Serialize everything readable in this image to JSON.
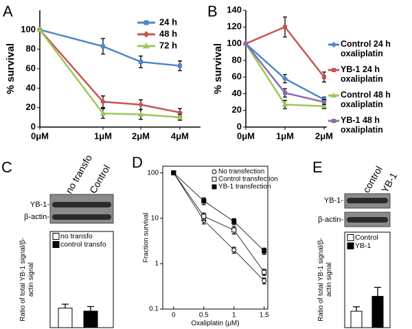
{
  "chart_data": [
    {
      "type": "line",
      "panel": "A",
      "ylabel": "% survival",
      "categories": [
        "0μM",
        "1μM",
        "2μM",
        "4μM"
      ],
      "series": [
        {
          "name": "24 h",
          "color": "#4f86c6",
          "marker": "square",
          "values": [
            100,
            83,
            67,
            63
          ],
          "errors": [
            null,
            8,
            6,
            5
          ]
        },
        {
          "name": "48 h",
          "color": "#c9534f",
          "marker": "diamond",
          "values": [
            100,
            26,
            23,
            15
          ],
          "errors": [
            null,
            6,
            5,
            4
          ]
        },
        {
          "name": "72 h",
          "color": "#9bc65a",
          "marker": "triangle",
          "values": [
            100,
            14,
            13,
            10
          ],
          "errors": [
            null,
            5,
            5,
            3
          ]
        }
      ],
      "ylim": [
        0,
        120
      ],
      "yticks": [
        0,
        20,
        40,
        60,
        80,
        100
      ]
    },
    {
      "type": "line",
      "panel": "B",
      "ylabel": "% survival",
      "categories": [
        "0μM",
        "1μM",
        "2μM"
      ],
      "series": [
        {
          "name": "Control 24 h oxaliplatin",
          "color": "#4f86c6",
          "marker": "diamond",
          "values": [
            100,
            58,
            33
          ],
          "errors": [
            null,
            5,
            3
          ]
        },
        {
          "name": "YB-1 24 h oxaliplatin",
          "color": "#c9534f",
          "marker": "square",
          "values": [
            100,
            120,
            60
          ],
          "errors": [
            null,
            12,
            6
          ]
        },
        {
          "name": "Control 48 h oxaliplatin",
          "color": "#9bc65a",
          "marker": "triangle",
          "values": [
            100,
            27,
            25
          ],
          "errors": [
            null,
            5,
            3
          ]
        },
        {
          "name": "YB-1 48 h oxaliplatin",
          "color": "#8d6bb0",
          "marker": "square",
          "values": [
            100,
            41,
            30
          ],
          "errors": [
            null,
            5,
            3
          ]
        }
      ],
      "ylim": [
        0,
        140
      ],
      "yticks": [
        0,
        20,
        40,
        60,
        80,
        100,
        120,
        140
      ]
    },
    {
      "type": "bar",
      "panel": "C",
      "ylabel": "Ratio of total YB-1 signal/β-actin signal",
      "lanes": [
        "no transfo",
        "Control"
      ],
      "bands": [
        "YB-1-",
        "β-actin-"
      ],
      "series": [
        {
          "name": "no transfo",
          "color": "#ffffff",
          "values": [
            0.65
          ],
          "errors": [
            0.13
          ]
        },
        {
          "name": "control transfo",
          "color": "#000000",
          "values": [
            0.55
          ],
          "errors": [
            0.15
          ]
        }
      ],
      "ylim": [
        0,
        3.2
      ]
    },
    {
      "type": "line",
      "panel": "D",
      "ylabel": "Fraction survival",
      "xlabel": "Oxaliplatin (μM)",
      "x": [
        0,
        0.5,
        1,
        1.5
      ],
      "series": [
        {
          "name": "No transfection",
          "color": "#000000",
          "marker": "circle-open",
          "values": [
            100,
            9,
            2,
            0.42
          ],
          "errors": [
            null,
            1.5,
            0.3,
            0.06
          ]
        },
        {
          "name": "Control transfection",
          "color": "#000000",
          "marker": "square-open",
          "values": [
            100,
            11,
            5.5,
            0.65
          ],
          "errors": [
            null,
            2,
            1,
            0.1
          ]
        },
        {
          "name": "YB-1 transfection",
          "color": "#000000",
          "marker": "square",
          "values": [
            100,
            24,
            8.5,
            1.9
          ],
          "errors": [
            null,
            4,
            1.3,
            0.3
          ]
        }
      ],
      "xlim": [
        -0.18,
        1.56
      ],
      "xticks": [
        0,
        0.5,
        1,
        1.5
      ],
      "ylim": [
        0.1,
        140
      ],
      "yticks": [
        0.1,
        1,
        10,
        100
      ],
      "ylog": true
    },
    {
      "type": "bar",
      "panel": "E",
      "ylabel": "Ratio of total YB-1 signal/β-actin signal",
      "lanes": [
        "control",
        "YB-1"
      ],
      "bands": [
        "YB-1-",
        "β-actin-"
      ],
      "series": [
        {
          "name": "Control",
          "color": "#ffffff",
          "values": [
            0.55
          ],
          "errors": [
            0.15
          ]
        },
        {
          "name": "YB-1",
          "color": "#000000",
          "values": [
            1.05
          ],
          "errors": [
            0.3
          ]
        }
      ],
      "ylim": [
        0,
        3.2
      ]
    }
  ]
}
